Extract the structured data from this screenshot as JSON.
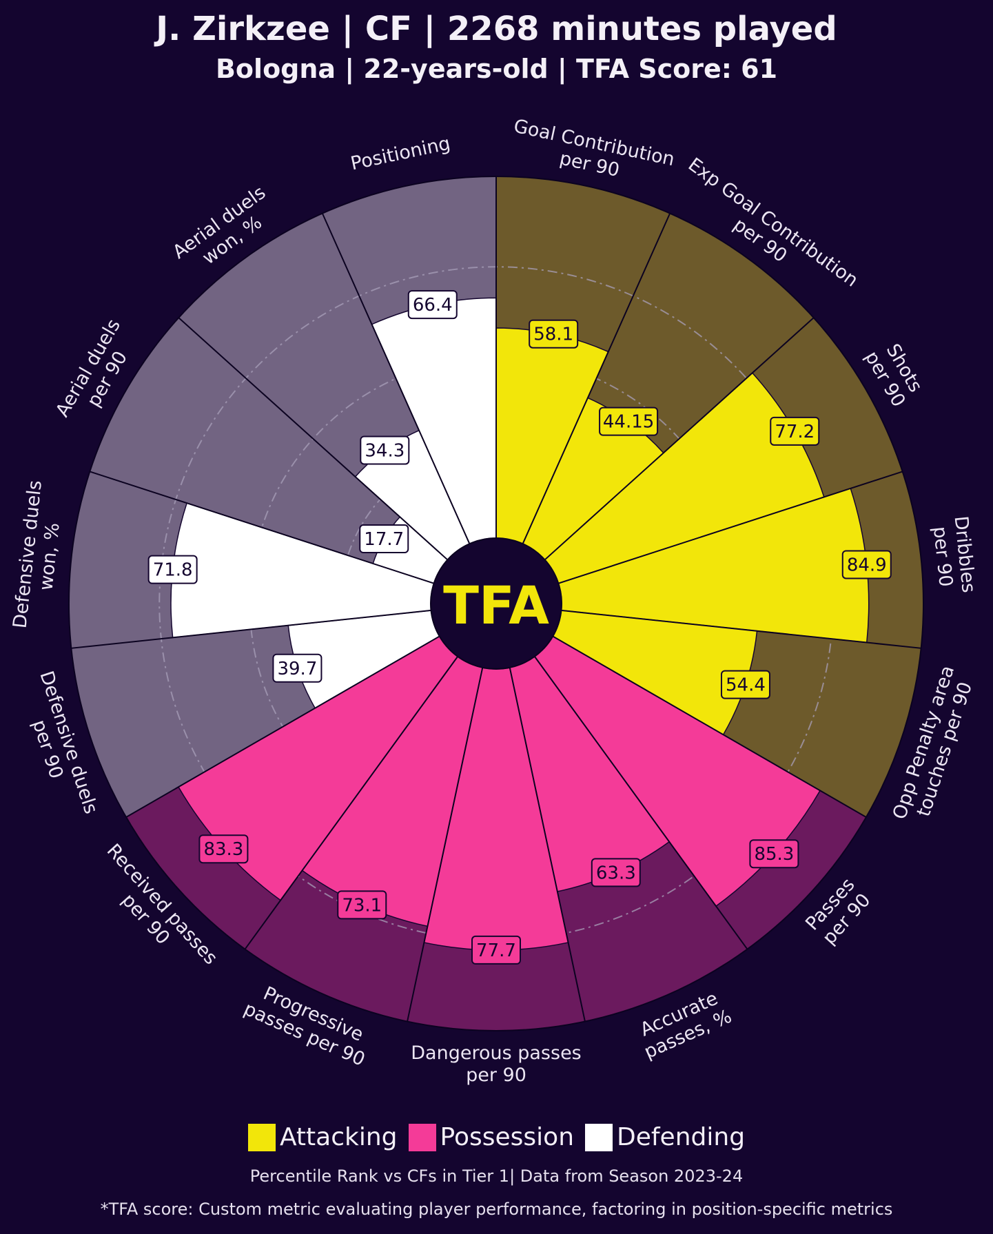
{
  "header": {
    "title": "J. Zirkzee | CF | 2268 minutes played",
    "subtitle": "Bologna | 22-years-old | TFA Score: 61"
  },
  "center_logo_text": "TFA",
  "colors": {
    "background": "#14052f",
    "attacking": "#f2e60a",
    "attacking_bg": "#6d5a2b",
    "possession": "#f43b98",
    "possession_bg": "#6b1a5e",
    "defending": "#ffffff",
    "defending_bg": "#726482"
  },
  "chart_data": {
    "type": "radial-bar",
    "title": "J. Zirkzee | CF | 2268 minutes played",
    "subtitle": "Bologna | 22-years-old | TFA Score: 61",
    "scale": [
      0,
      100
    ],
    "grid": true,
    "metrics": [
      {
        "name": "Goal Contribution per 90",
        "lines": [
          "Goal Contribution",
          "per 90"
        ],
        "value": 58.1,
        "label": "58.1",
        "category": "Attacking"
      },
      {
        "name": "Exp Goal Contribution per 90",
        "lines": [
          "Exp Goal Contribution",
          "per 90"
        ],
        "value": 44.15,
        "label": "44.15",
        "category": "Attacking"
      },
      {
        "name": "Shots per 90",
        "lines": [
          "Shots",
          "per 90"
        ],
        "value": 77.2,
        "label": "77.2",
        "category": "Attacking"
      },
      {
        "name": "Dribbles per 90",
        "lines": [
          "Dribbles",
          "per 90"
        ],
        "value": 84.9,
        "label": "84.9",
        "category": "Attacking"
      },
      {
        "name": "Opp Penalty area touches per 90",
        "lines": [
          "Opp Penalty area",
          "touches per 90"
        ],
        "value": 54.4,
        "label": "54.4",
        "category": "Attacking"
      },
      {
        "name": "Passes per 90",
        "lines": [
          "Passes",
          "per 90"
        ],
        "value": 85.3,
        "label": "85.3",
        "category": "Possession"
      },
      {
        "name": "Accurate passes, %",
        "lines": [
          "Accurate",
          "passes, %"
        ],
        "value": 63.3,
        "label": "63.3",
        "category": "Possession"
      },
      {
        "name": "Dangerous passes per 90",
        "lines": [
          "Dangerous passes",
          "per 90"
        ],
        "value": 77.7,
        "label": "77.7",
        "category": "Possession"
      },
      {
        "name": "Progressive passes per 90",
        "lines": [
          "Progressive",
          "passes per 90"
        ],
        "value": 73.1,
        "label": "73.1",
        "category": "Possession"
      },
      {
        "name": "Received passes per 90",
        "lines": [
          "Received passes",
          "per 90"
        ],
        "value": 83.3,
        "label": "83.3",
        "category": "Possession"
      },
      {
        "name": "Defensive duels per 90",
        "lines": [
          "Defensive duels",
          "per 90"
        ],
        "value": 39.7,
        "label": "39.7",
        "category": "Defending"
      },
      {
        "name": "Defensive duels won, %",
        "lines": [
          "Defensive duels",
          "won, %"
        ],
        "value": 71.8,
        "label": "71.8",
        "category": "Defending"
      },
      {
        "name": "Aerial duels per 90",
        "lines": [
          "Aerial duels",
          "per 90"
        ],
        "value": 17.7,
        "label": "17.7",
        "category": "Defending"
      },
      {
        "name": "Aerial duels won, %",
        "lines": [
          "Aerial duels",
          "won, %"
        ],
        "value": 34.3,
        "label": "34.3",
        "category": "Defending"
      },
      {
        "name": "Positioning",
        "lines": [
          "Positioning"
        ],
        "value": 66.4,
        "label": "66.4",
        "category": "Defending"
      }
    ]
  },
  "legend": [
    {
      "label": "Attacking",
      "color": "#f2e60a"
    },
    {
      "label": "Possession",
      "color": "#f43b98"
    },
    {
      "label": "Defending",
      "color": "#ffffff"
    }
  ],
  "footer": {
    "note1": "Percentile Rank vs CFs in Tier 1| Data from Season 2023-24",
    "note2": "*TFA score: Custom metric evaluating player performance, factoring in position-specific metrics"
  }
}
